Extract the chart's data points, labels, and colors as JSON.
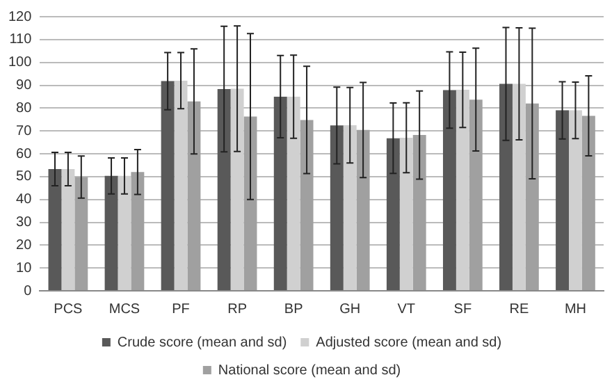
{
  "chart_data": {
    "type": "bar",
    "categories": [
      "PCS",
      "MCS",
      "PF",
      "RP",
      "BP",
      "GH",
      "VT",
      "SF",
      "RE",
      "MH"
    ],
    "series": [
      {
        "name": "Crude score (mean and sd)",
        "color": "#595959",
        "values": [
          53.3,
          50.3,
          91.8,
          88.3,
          85,
          72.4,
          66.8,
          87.9,
          90.6,
          79
        ],
        "errors": [
          7.3,
          7.9,
          12.5,
          27.5,
          18,
          16.8,
          15.4,
          16.7,
          24.7,
          12.5
        ]
      },
      {
        "name": "Adjusted score (mean and sd)",
        "color": "#d0d0d0",
        "values": [
          53.3,
          50.3,
          92,
          88.5,
          85,
          72.5,
          67,
          88,
          90.6,
          79
        ],
        "errors": [
          7.3,
          7.9,
          12.3,
          27.5,
          18.2,
          16.5,
          15.3,
          16.5,
          24.5,
          12.4
        ]
      },
      {
        "name": "National score (mean and sd)",
        "color": "#a0a0a0",
        "values": [
          49.8,
          52,
          82.9,
          76.3,
          74.8,
          70.4,
          68.2,
          83.7,
          82,
          76.6
        ],
        "errors": [
          9.2,
          9.8,
          23,
          36.3,
          23.5,
          20.8,
          19.3,
          22.5,
          33,
          17.5
        ]
      }
    ],
    "ylim": [
      0,
      120
    ],
    "yticks": [
      0,
      10,
      20,
      30,
      40,
      50,
      60,
      70,
      80,
      90,
      100,
      110,
      120
    ],
    "grid": "y",
    "legend": "bottom"
  }
}
